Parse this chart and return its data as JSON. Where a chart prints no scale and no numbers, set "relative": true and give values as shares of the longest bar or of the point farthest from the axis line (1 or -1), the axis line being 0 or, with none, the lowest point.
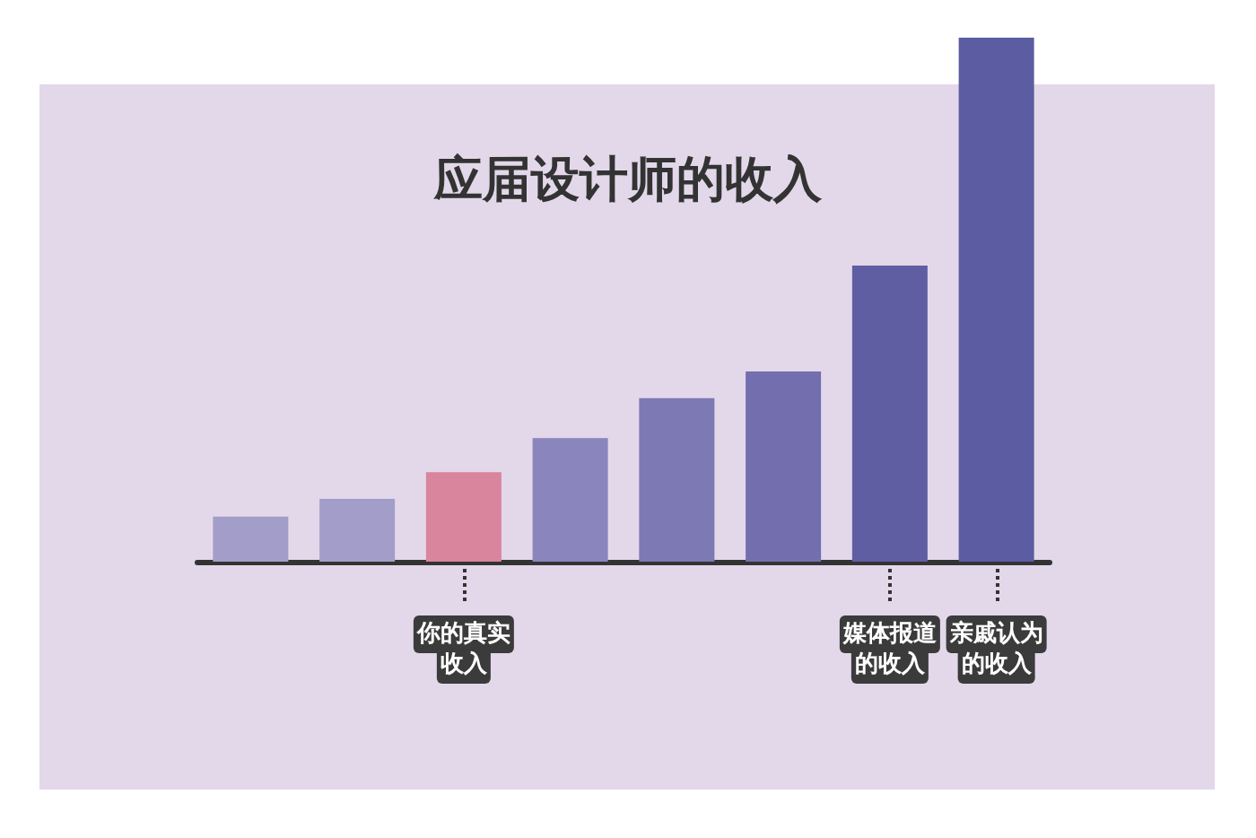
{
  "chart_data": {
    "type": "bar",
    "title": "应届设计师的收入",
    "relative": true,
    "categories": [
      null,
      null,
      "你的真实收入",
      null,
      null,
      null,
      "媒体报道的收入",
      "亲戚认为的收入"
    ],
    "values": [
      0.086,
      0.12,
      0.171,
      0.236,
      0.312,
      0.363,
      0.565,
      1
    ],
    "colors": [
      "#a29ec9",
      "#a29ec9",
      "#d9859e",
      "#8a86bd",
      "#7d79b4",
      "#736fae",
      "#5f5ea3",
      "#5b5ca2"
    ],
    "grid": false
  }
}
